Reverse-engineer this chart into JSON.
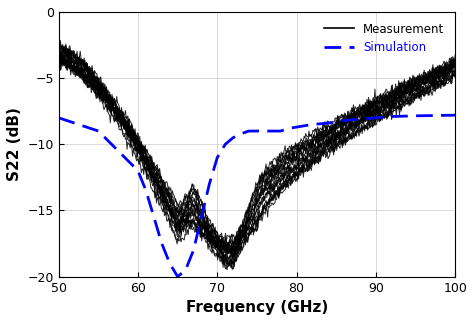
{
  "xlim": [
    50,
    100
  ],
  "ylim": [
    -20,
    0
  ],
  "xlabel": "Frequency (GHz)",
  "ylabel": "S22 (dB)",
  "xticks": [
    50,
    60,
    70,
    80,
    90,
    100
  ],
  "yticks": [
    0,
    -5,
    -10,
    -15,
    -20
  ],
  "grid": true,
  "measurement_color": "#000000",
  "simulation_color": "#0000ff",
  "background_color": "#ffffff",
  "num_measurement_curves": 20,
  "sim_x": [
    50,
    55,
    60,
    61,
    62,
    63,
    64,
    65,
    66,
    67,
    68,
    69,
    70,
    71,
    72,
    73,
    74,
    75,
    76,
    77,
    78,
    79,
    80,
    82,
    84,
    86,
    88,
    90,
    92,
    95,
    100
  ],
  "sim_y": [
    -8.0,
    -9.0,
    -12.0,
    -13.5,
    -15.5,
    -17.5,
    -19.0,
    -20.0,
    -19.5,
    -18.0,
    -15.5,
    -13.0,
    -11.0,
    -10.0,
    -9.5,
    -9.2,
    -9.0,
    -9.0,
    -9.0,
    -9.0,
    -9.0,
    -8.8,
    -8.7,
    -8.5,
    -8.4,
    -8.2,
    -8.1,
    -8.0,
    -7.9,
    -7.85,
    -7.8
  ]
}
